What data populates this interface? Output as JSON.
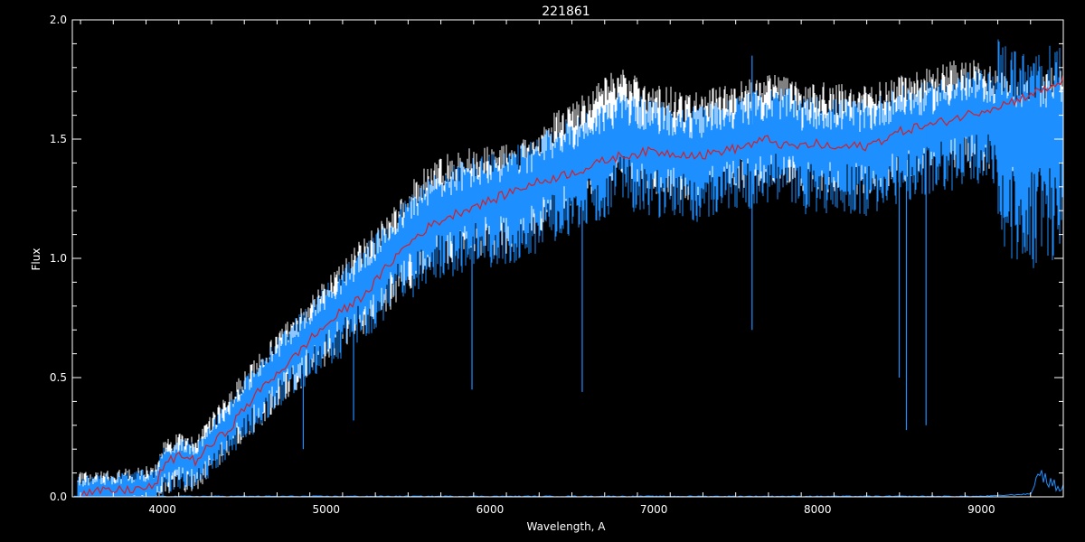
{
  "chart_data": {
    "type": "line",
    "title": "221861",
    "xlabel": "Wavelength, A",
    "ylabel": "Flux",
    "xlim": [
      3450,
      9500
    ],
    "ylim": [
      0,
      2.0
    ],
    "x_ticks": [
      4000,
      5000,
      6000,
      7000,
      8000,
      9000
    ],
    "x_tick_labels": [
      "4000",
      "5000",
      "6000",
      "7000",
      "8000",
      "9000"
    ],
    "y_ticks": [
      0,
      0.5,
      1.0,
      1.5,
      2.0
    ],
    "y_tick_labels": [
      "0.0",
      "0.5",
      "1.0",
      "1.5",
      "2.0"
    ],
    "grid": false,
    "colors": {
      "background": "#000000",
      "axes": "#ffffff",
      "observed_upper": "#ffffff",
      "observed": "#1e8fff",
      "model": "#d0202a",
      "noise": "#1e8fff"
    },
    "series": [
      {
        "x": [
          3450,
          3600,
          3800,
          3950,
          4000,
          4100,
          4200,
          4300,
          4400,
          4500,
          4600,
          4700,
          4800,
          4900,
          5000,
          5100,
          5200,
          5300,
          5400,
          5500,
          5600,
          5700,
          5800,
          5900,
          6000,
          6100,
          6200,
          6300,
          6400,
          6500,
          6600,
          6700,
          6800,
          6900,
          7000,
          7100,
          7200,
          7300,
          7400,
          7500,
          7600,
          7700,
          7800,
          7900,
          8000,
          8100,
          8200,
          8300,
          8400,
          8500,
          8600,
          8700,
          8800,
          8900,
          9000,
          9100,
          9200,
          9300,
          9400,
          9500
        ],
        "values": [
          0.01,
          0.02,
          0.03,
          0.04,
          0.12,
          0.18,
          0.15,
          0.22,
          0.28,
          0.37,
          0.45,
          0.52,
          0.58,
          0.66,
          0.72,
          0.78,
          0.83,
          0.9,
          0.99,
          1.06,
          1.12,
          1.16,
          1.19,
          1.22,
          1.24,
          1.27,
          1.3,
          1.32,
          1.34,
          1.36,
          1.38,
          1.41,
          1.43,
          1.44,
          1.45,
          1.44,
          1.44,
          1.43,
          1.45,
          1.46,
          1.48,
          1.5,
          1.47,
          1.47,
          1.48,
          1.46,
          1.47,
          1.47,
          1.5,
          1.53,
          1.55,
          1.56,
          1.58,
          1.6,
          1.62,
          1.64,
          1.66,
          1.69,
          1.71,
          1.75
        ]
      },
      {
        "x": [
          3450,
          3600,
          3800,
          3950,
          4000,
          4100,
          4200,
          4300,
          4400,
          4500,
          4600,
          4700,
          4800,
          4900,
          5000,
          5100,
          5200,
          5300,
          5400,
          5500,
          5600,
          5700,
          5800,
          5900,
          6000,
          6100,
          6200,
          6300,
          6400,
          6500,
          6600,
          6700,
          6800,
          6900,
          7000,
          7100,
          7200,
          7300,
          7400,
          7500,
          7600,
          7700,
          7800,
          7900,
          8000,
          8100,
          8200,
          8300,
          8400,
          8500,
          8600,
          8700,
          8800,
          8900,
          9000,
          9100,
          9200,
          9300,
          9400,
          9500
        ],
        "values": [
          0.02,
          0.03,
          0.04,
          0.05,
          0.13,
          0.17,
          0.15,
          0.24,
          0.31,
          0.4,
          0.47,
          0.55,
          0.62,
          0.69,
          0.76,
          0.82,
          0.89,
          0.95,
          1.03,
          1.1,
          1.16,
          1.2,
          1.23,
          1.25,
          1.26,
          1.28,
          1.3,
          1.33,
          1.38,
          1.41,
          1.44,
          1.48,
          1.52,
          1.5,
          1.48,
          1.47,
          1.45,
          1.46,
          1.49,
          1.5,
          1.52,
          1.53,
          1.54,
          1.49,
          1.5,
          1.49,
          1.49,
          1.48,
          1.51,
          1.54,
          1.55,
          1.56,
          1.59,
          1.6,
          1.61,
          1.6,
          1.55,
          1.52,
          1.55,
          1.58
        ]
      },
      {
        "x": [
          3450,
          3600,
          3800,
          3950,
          4000,
          4100,
          4200,
          4300,
          4400,
          4500,
          4600,
          4700,
          4800,
          4900,
          5000,
          5100,
          5200,
          5300,
          5400,
          5500,
          5600,
          5700,
          5800,
          5900,
          6000,
          6100,
          6200,
          6300,
          6400,
          6500,
          6600,
          6700,
          6800,
          6900,
          7000,
          7100,
          7200,
          7300,
          7400,
          7500,
          7600,
          7700,
          7800,
          7900,
          8000,
          8100,
          8200,
          8300,
          8400,
          8500,
          8600,
          8700,
          8800,
          8900,
          9000,
          9100,
          9200,
          9300,
          9400,
          9500
        ],
        "values": [
          0.02,
          0.03,
          0.04,
          0.05,
          0.14,
          0.18,
          0.16,
          0.25,
          0.33,
          0.42,
          0.49,
          0.57,
          0.64,
          0.71,
          0.78,
          0.85,
          0.92,
          0.98,
          1.06,
          1.14,
          1.21,
          1.26,
          1.28,
          1.3,
          1.3,
          1.31,
          1.33,
          1.38,
          1.45,
          1.49,
          1.53,
          1.59,
          1.63,
          1.6,
          1.56,
          1.55,
          1.52,
          1.53,
          1.56,
          1.57,
          1.59,
          1.6,
          1.6,
          1.56,
          1.57,
          1.56,
          1.56,
          1.55,
          1.58,
          1.61,
          1.62,
          1.63,
          1.66,
          1.66,
          1.66,
          1.64,
          1.6,
          1.58,
          1.62,
          1.66
        ]
      },
      {
        "x": [
          3450,
          4000,
          5000,
          6000,
          7000,
          8000,
          9000,
          9300,
          9350,
          9400,
          9450,
          9500
        ],
        "values": [
          0.0,
          0.0,
          0.0,
          0.0,
          0.0,
          0.0,
          0.0,
          0.01,
          0.08,
          0.04,
          0.02,
          0.01
        ]
      }
    ]
  }
}
